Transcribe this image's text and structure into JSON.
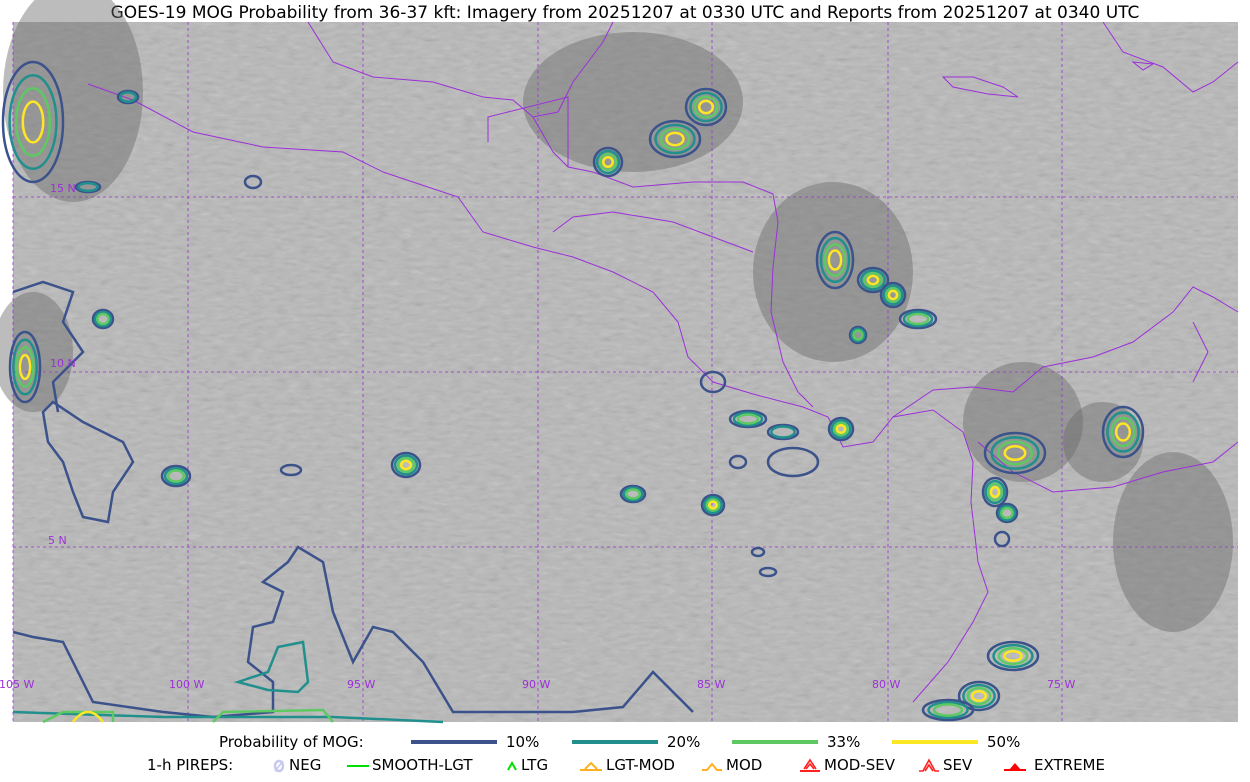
{
  "title": "GOES-19 MOG Probability from 36-37 kft: Imagery from 20251207 at 0330 UTC and Reports from 20251207 at 0340 UTC",
  "map": {
    "lon_labels": [
      "105 W",
      "100 W",
      "95 W",
      "90 W",
      "85 W",
      "80 W",
      "75 W"
    ],
    "lat_labels": [
      "15 N",
      "10 N",
      "5 N"
    ],
    "grid_color": "#9b30d9",
    "border_color": "#9b30d9"
  },
  "legend": {
    "probability_title": "Probability of MOG:",
    "levels": [
      {
        "label": "10%",
        "color": "#3b528b"
      },
      {
        "label": "20%",
        "color": "#21908d"
      },
      {
        "label": "33%",
        "color": "#5ec962"
      },
      {
        "label": "50%",
        "color": "#fde725"
      }
    ],
    "pireps_title": "1-h PIREPS:",
    "pireps": [
      {
        "label": "NEG",
        "icon": "neg-icon",
        "color": "#c8c8f0"
      },
      {
        "label": "SMOOTH-LGT",
        "icon": "smooth-line-icon",
        "color": "#00e000"
      },
      {
        "label": "LTG",
        "icon": "caret-icon",
        "color": "#00e000"
      },
      {
        "label": "LGT-MOD",
        "icon": "caret-bar-icon",
        "color": "#ffb020"
      },
      {
        "label": "MOD",
        "icon": "caret-icon",
        "color": "#ffb020"
      },
      {
        "label": "MOD-SEV",
        "icon": "double-caret-bar-icon",
        "color": "#ff2020"
      },
      {
        "label": "SEV",
        "icon": "double-caret-icon",
        "color": "#ff2020"
      },
      {
        "label": "EXTREME",
        "icon": "filled-triangle-icon",
        "color": "#ff0000"
      }
    ]
  }
}
